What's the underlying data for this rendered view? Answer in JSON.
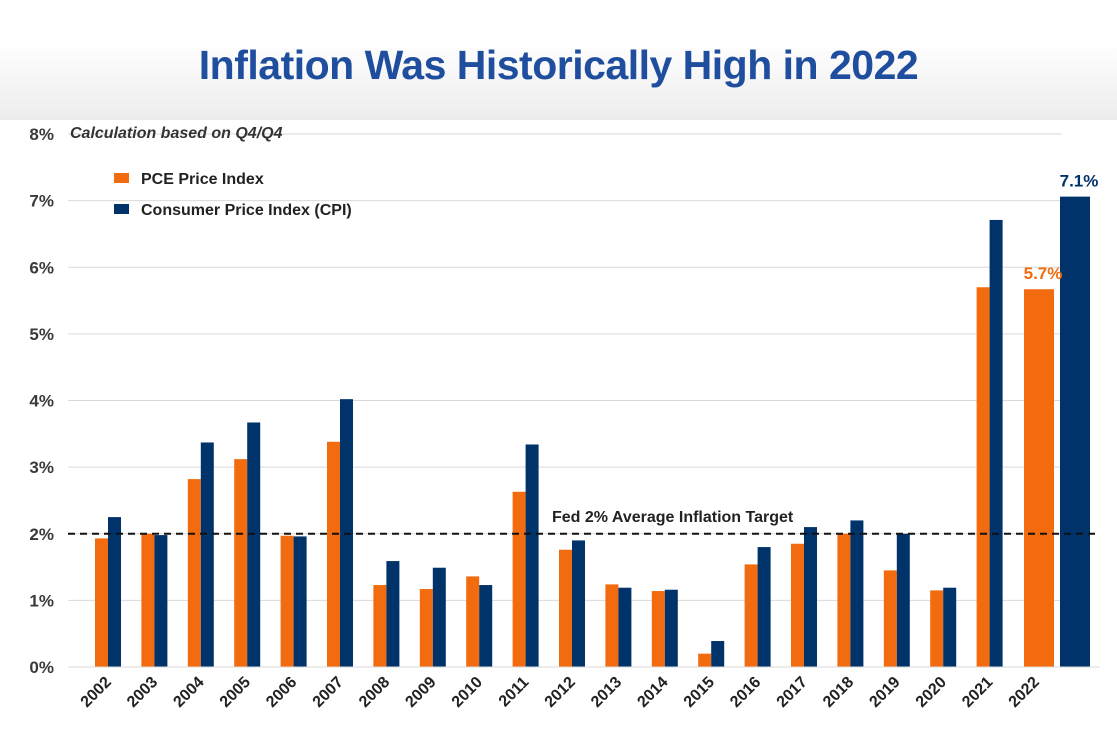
{
  "title": "Inflation Was Historically High in 2022",
  "chart_data": {
    "type": "bar",
    "subtitle": "Calculation based on Q4/Q4",
    "categories": [
      "2002",
      "2003",
      "2004",
      "2005",
      "2006",
      "2007",
      "2008",
      "2009",
      "2010",
      "2011",
      "2012",
      "2013",
      "2014",
      "2015",
      "2016",
      "2017",
      "2018",
      "2019",
      "2020",
      "2021",
      "2022"
    ],
    "series": [
      {
        "name": "PCE Price Index",
        "color": "#f26b0f",
        "values": [
          1.93,
          2.0,
          2.82,
          3.12,
          1.97,
          3.38,
          1.23,
          1.17,
          1.36,
          2.63,
          1.76,
          1.24,
          1.14,
          0.2,
          1.54,
          1.85,
          2.0,
          1.45,
          1.15,
          5.7,
          5.67
        ]
      },
      {
        "name": "Consumer Price Index (CPI)",
        "color": "#00336a",
        "values": [
          2.25,
          1.98,
          3.37,
          3.67,
          1.96,
          4.02,
          1.59,
          1.49,
          1.23,
          3.34,
          1.9,
          1.19,
          1.16,
          0.39,
          1.8,
          2.1,
          2.2,
          2.0,
          1.19,
          6.71,
          7.06
        ]
      }
    ],
    "ylim": [
      0,
      8
    ],
    "yticks": [
      0,
      1,
      2,
      3,
      4,
      5,
      6,
      7,
      8
    ],
    "ytick_labels": [
      "0%",
      "1%",
      "2%",
      "3%",
      "4%",
      "5%",
      "6%",
      "7%",
      "8%"
    ],
    "grid": true,
    "legend_position": "top-left",
    "reference_line": {
      "value": 2,
      "label": "Fed 2% Average Inflation Target",
      "style": "dashed"
    },
    "data_labels": [
      {
        "series": 0,
        "category": "2022",
        "text": "5.7%"
      },
      {
        "series": 1,
        "category": "2022",
        "text": "7.1%"
      }
    ]
  }
}
